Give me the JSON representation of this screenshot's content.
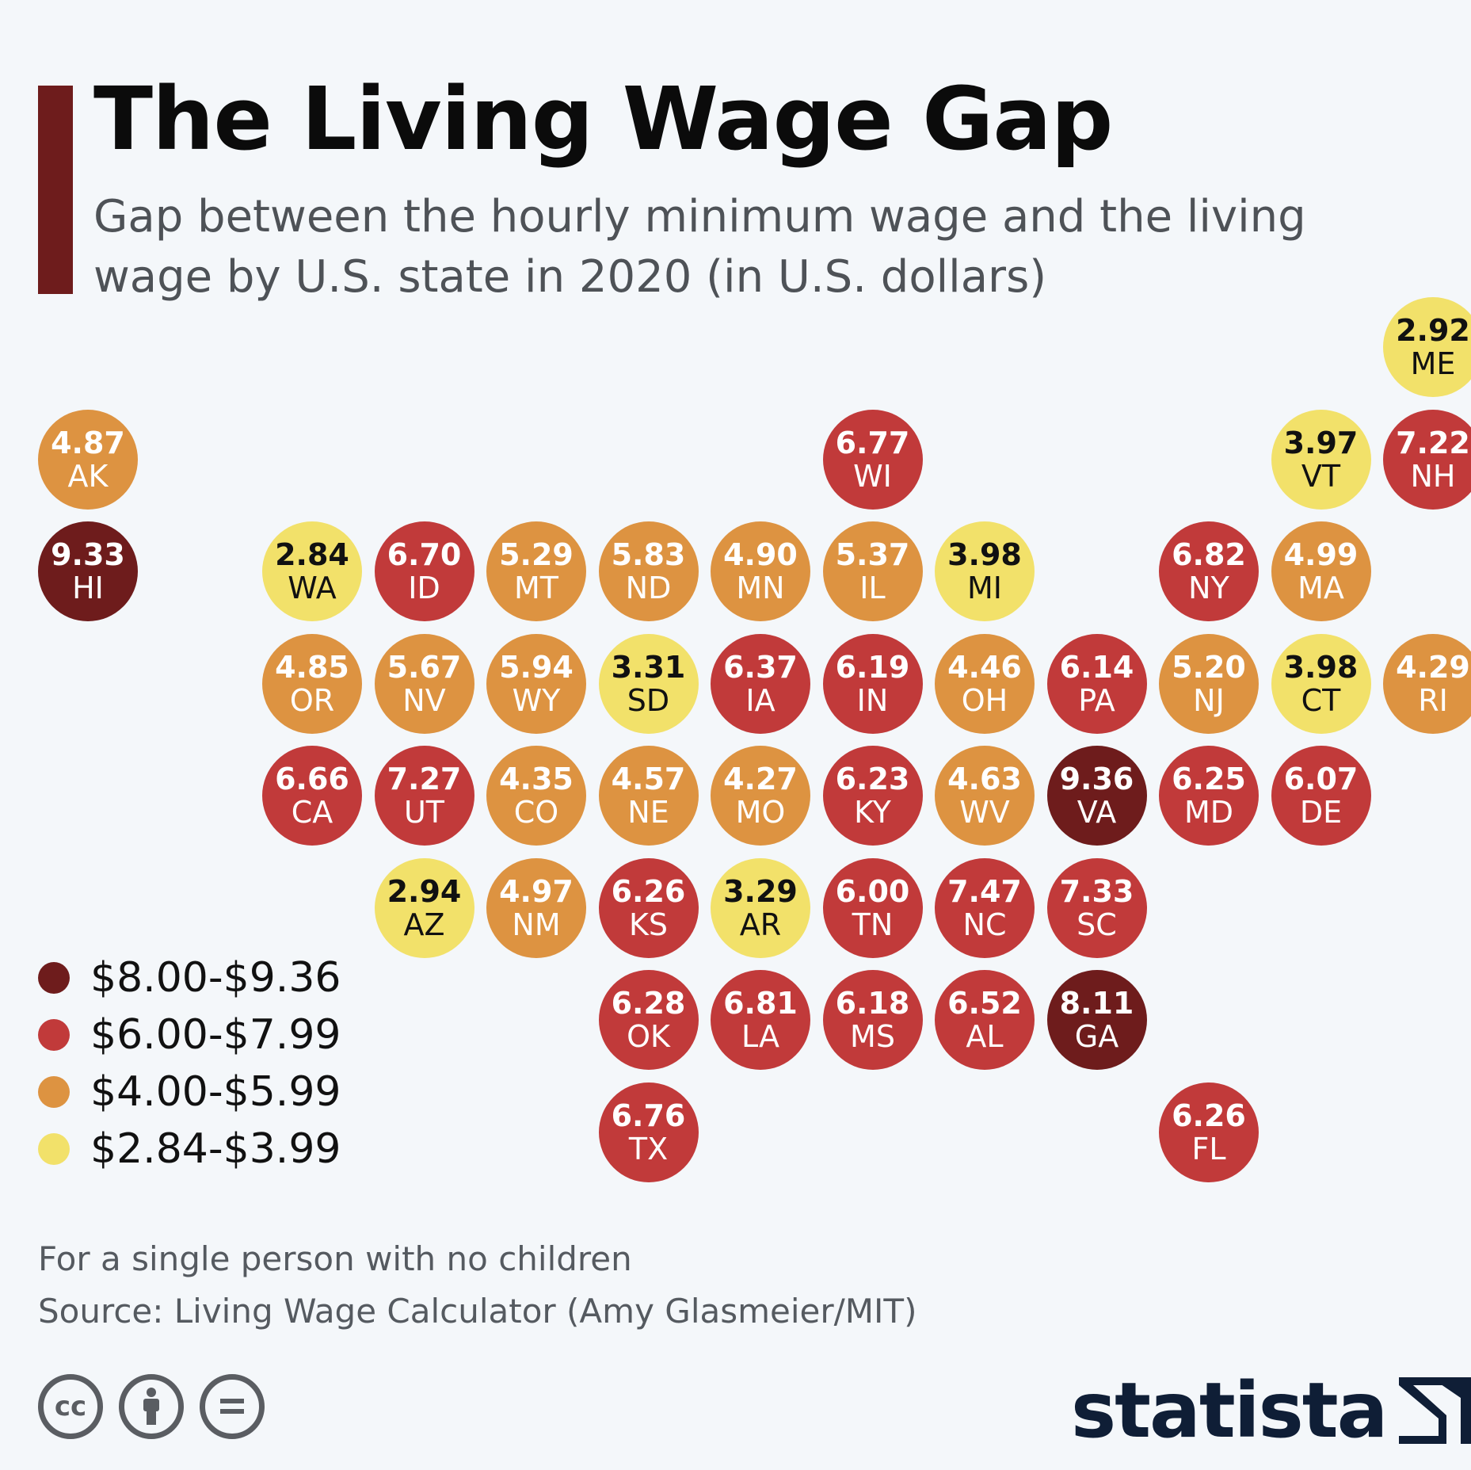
{
  "title": "The Living Wage Gap",
  "subtitle": "Gap between the hourly minimum wage and the living wage by U.S. state in 2020 (in U.S. dollars)",
  "colors": {
    "accent": "#6e1c1c",
    "tier1": "#6e1c1c",
    "tier2": "#c13a3a",
    "tier3": "#dd9341",
    "tier4": "#f2e16a"
  },
  "legend": [
    {
      "label": "$8.00-$9.36",
      "tier": "tier1"
    },
    {
      "label": "$6.00-$7.99",
      "tier": "tier2"
    },
    {
      "label": "$4.00-$5.99",
      "tier": "tier3"
    },
    {
      "label": "$2.84-$3.99",
      "tier": "tier4"
    }
  ],
  "chart_data": {
    "type": "tile-map",
    "states": [
      {
        "abbr": "ME",
        "value": "2.92",
        "row": 0,
        "col": 12
      },
      {
        "abbr": "AK",
        "value": "4.87",
        "row": 1,
        "col": 0
      },
      {
        "abbr": "WI",
        "value": "6.77",
        "row": 1,
        "col": 7
      },
      {
        "abbr": "VT",
        "value": "3.97",
        "row": 1,
        "col": 11
      },
      {
        "abbr": "NH",
        "value": "7.22",
        "row": 1,
        "col": 12
      },
      {
        "abbr": "HI",
        "value": "9.33",
        "row": 2,
        "col": 0
      },
      {
        "abbr": "WA",
        "value": "2.84",
        "row": 2,
        "col": 2
      },
      {
        "abbr": "ID",
        "value": "6.70",
        "row": 2,
        "col": 3
      },
      {
        "abbr": "MT",
        "value": "5.29",
        "row": 2,
        "col": 4
      },
      {
        "abbr": "ND",
        "value": "5.83",
        "row": 2,
        "col": 5
      },
      {
        "abbr": "MN",
        "value": "4.90",
        "row": 2,
        "col": 6
      },
      {
        "abbr": "IL",
        "value": "5.37",
        "row": 2,
        "col": 7
      },
      {
        "abbr": "MI",
        "value": "3.98",
        "row": 2,
        "col": 8
      },
      {
        "abbr": "NY",
        "value": "6.82",
        "row": 2,
        "col": 10
      },
      {
        "abbr": "MA",
        "value": "4.99",
        "row": 2,
        "col": 11
      },
      {
        "abbr": "OR",
        "value": "4.85",
        "row": 3,
        "col": 2
      },
      {
        "abbr": "NV",
        "value": "5.67",
        "row": 3,
        "col": 3
      },
      {
        "abbr": "WY",
        "value": "5.94",
        "row": 3,
        "col": 4
      },
      {
        "abbr": "SD",
        "value": "3.31",
        "row": 3,
        "col": 5
      },
      {
        "abbr": "IA",
        "value": "6.37",
        "row": 3,
        "col": 6
      },
      {
        "abbr": "IN",
        "value": "6.19",
        "row": 3,
        "col": 7
      },
      {
        "abbr": "OH",
        "value": "4.46",
        "row": 3,
        "col": 8
      },
      {
        "abbr": "PA",
        "value": "6.14",
        "row": 3,
        "col": 9
      },
      {
        "abbr": "NJ",
        "value": "5.20",
        "row": 3,
        "col": 10
      },
      {
        "abbr": "CT",
        "value": "3.98",
        "row": 3,
        "col": 11
      },
      {
        "abbr": "RI",
        "value": "4.29",
        "row": 3,
        "col": 12
      },
      {
        "abbr": "CA",
        "value": "6.66",
        "row": 4,
        "col": 2
      },
      {
        "abbr": "UT",
        "value": "7.27",
        "row": 4,
        "col": 3
      },
      {
        "abbr": "CO",
        "value": "4.35",
        "row": 4,
        "col": 4
      },
      {
        "abbr": "NE",
        "value": "4.57",
        "row": 4,
        "col": 5
      },
      {
        "abbr": "MO",
        "value": "4.27",
        "row": 4,
        "col": 6
      },
      {
        "abbr": "KY",
        "value": "6.23",
        "row": 4,
        "col": 7
      },
      {
        "abbr": "WV",
        "value": "4.63",
        "row": 4,
        "col": 8
      },
      {
        "abbr": "VA",
        "value": "9.36",
        "row": 4,
        "col": 9
      },
      {
        "abbr": "MD",
        "value": "6.25",
        "row": 4,
        "col": 10
      },
      {
        "abbr": "DE",
        "value": "6.07",
        "row": 4,
        "col": 11
      },
      {
        "abbr": "AZ",
        "value": "2.94",
        "row": 5,
        "col": 3
      },
      {
        "abbr": "NM",
        "value": "4.97",
        "row": 5,
        "col": 4
      },
      {
        "abbr": "KS",
        "value": "6.26",
        "row": 5,
        "col": 5
      },
      {
        "abbr": "AR",
        "value": "3.29",
        "row": 5,
        "col": 6
      },
      {
        "abbr": "TN",
        "value": "6.00",
        "row": 5,
        "col": 7
      },
      {
        "abbr": "NC",
        "value": "7.47",
        "row": 5,
        "col": 8
      },
      {
        "abbr": "SC",
        "value": "7.33",
        "row": 5,
        "col": 9
      },
      {
        "abbr": "OK",
        "value": "6.28",
        "row": 6,
        "col": 5
      },
      {
        "abbr": "LA",
        "value": "6.81",
        "row": 6,
        "col": 6
      },
      {
        "abbr": "MS",
        "value": "6.18",
        "row": 6,
        "col": 7
      },
      {
        "abbr": "AL",
        "value": "6.52",
        "row": 6,
        "col": 8
      },
      {
        "abbr": "GA",
        "value": "8.11",
        "row": 6,
        "col": 9
      },
      {
        "abbr": "TX",
        "value": "6.76",
        "row": 7,
        "col": 5
      },
      {
        "abbr": "FL",
        "value": "6.26",
        "row": 7,
        "col": 10
      }
    ]
  },
  "notes": {
    "line1": "For a single person with no children",
    "line2": "Source: Living Wage Calculator (Amy Glasmeier/MIT)"
  },
  "license_icons": [
    "cc-icon",
    "attribution-icon",
    "no-derivatives-icon"
  ],
  "brand": {
    "name": "statista"
  }
}
